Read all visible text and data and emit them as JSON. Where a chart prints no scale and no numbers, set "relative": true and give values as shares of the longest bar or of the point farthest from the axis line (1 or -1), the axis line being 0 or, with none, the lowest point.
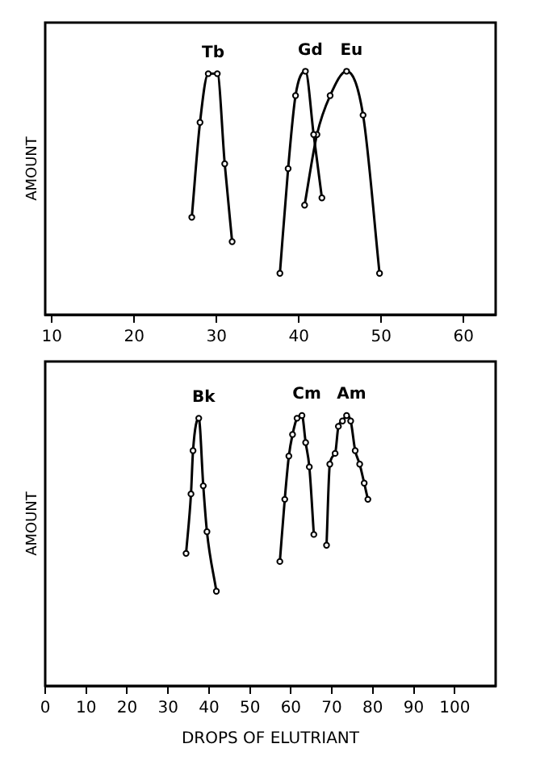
{
  "chart_data": [
    {
      "type": "line",
      "relative": true,
      "ylabel": "AMOUNT",
      "xlim": [
        9.2,
        63.9
      ],
      "xticks": [
        10,
        20,
        30,
        40,
        50,
        60
      ],
      "grid": false,
      "legend": false,
      "marker": "circle",
      "series": [
        {
          "name": "Tb",
          "color": "#000000",
          "x": [
            27.0,
            28.0,
            29.0,
            30.1,
            31.0,
            31.9
          ],
          "values": [
            0.4,
            0.79,
            0.99,
            0.99,
            0.62,
            0.3
          ]
        },
        {
          "name": "Gd",
          "color": "#000000",
          "x": [
            37.7,
            38.7,
            39.6,
            40.8,
            41.8,
            42.8
          ],
          "values": [
            0.17,
            0.6,
            0.9,
            1.0,
            0.74,
            0.48
          ]
        },
        {
          "name": "Eu",
          "color": "#000000",
          "x": [
            40.7,
            42.2,
            43.8,
            45.8,
            47.8,
            49.8
          ],
          "values": [
            0.45,
            0.74,
            0.9,
            1.0,
            0.82,
            0.17
          ]
        }
      ]
    },
    {
      "type": "line",
      "relative": true,
      "ylabel": "AMOUNT",
      "xlabel": "DROPS OF ELUTRIANT",
      "xlim": [
        0,
        110
      ],
      "xticks": [
        0,
        10,
        20,
        30,
        40,
        50,
        60,
        70,
        80,
        90,
        100
      ],
      "grid": false,
      "legend": false,
      "marker": "circle",
      "series": [
        {
          "name": "Bk",
          "color": "#000000",
          "x": [
            34.4,
            35.6,
            36.1,
            37.5,
            38.6,
            39.5,
            41.8
          ],
          "values": [
            0.49,
            0.71,
            0.87,
            0.99,
            0.74,
            0.57,
            0.35
          ]
        },
        {
          "name": "Cm",
          "color": "#000000",
          "x": [
            57.3,
            58.5,
            59.5,
            60.4,
            61.5,
            62.7,
            63.6,
            64.5,
            65.6
          ],
          "values": [
            0.46,
            0.69,
            0.85,
            0.93,
            0.99,
            1.0,
            0.9,
            0.81,
            0.56
          ]
        },
        {
          "name": "Am",
          "color": "#000000",
          "x": [
            68.7,
            69.5,
            70.8,
            71.6,
            72.6,
            73.6,
            74.6,
            75.7,
            76.8,
            77.9,
            78.8
          ],
          "values": [
            0.52,
            0.82,
            0.86,
            0.96,
            0.98,
            1.0,
            0.98,
            0.87,
            0.82,
            0.75,
            0.69
          ]
        }
      ]
    }
  ]
}
